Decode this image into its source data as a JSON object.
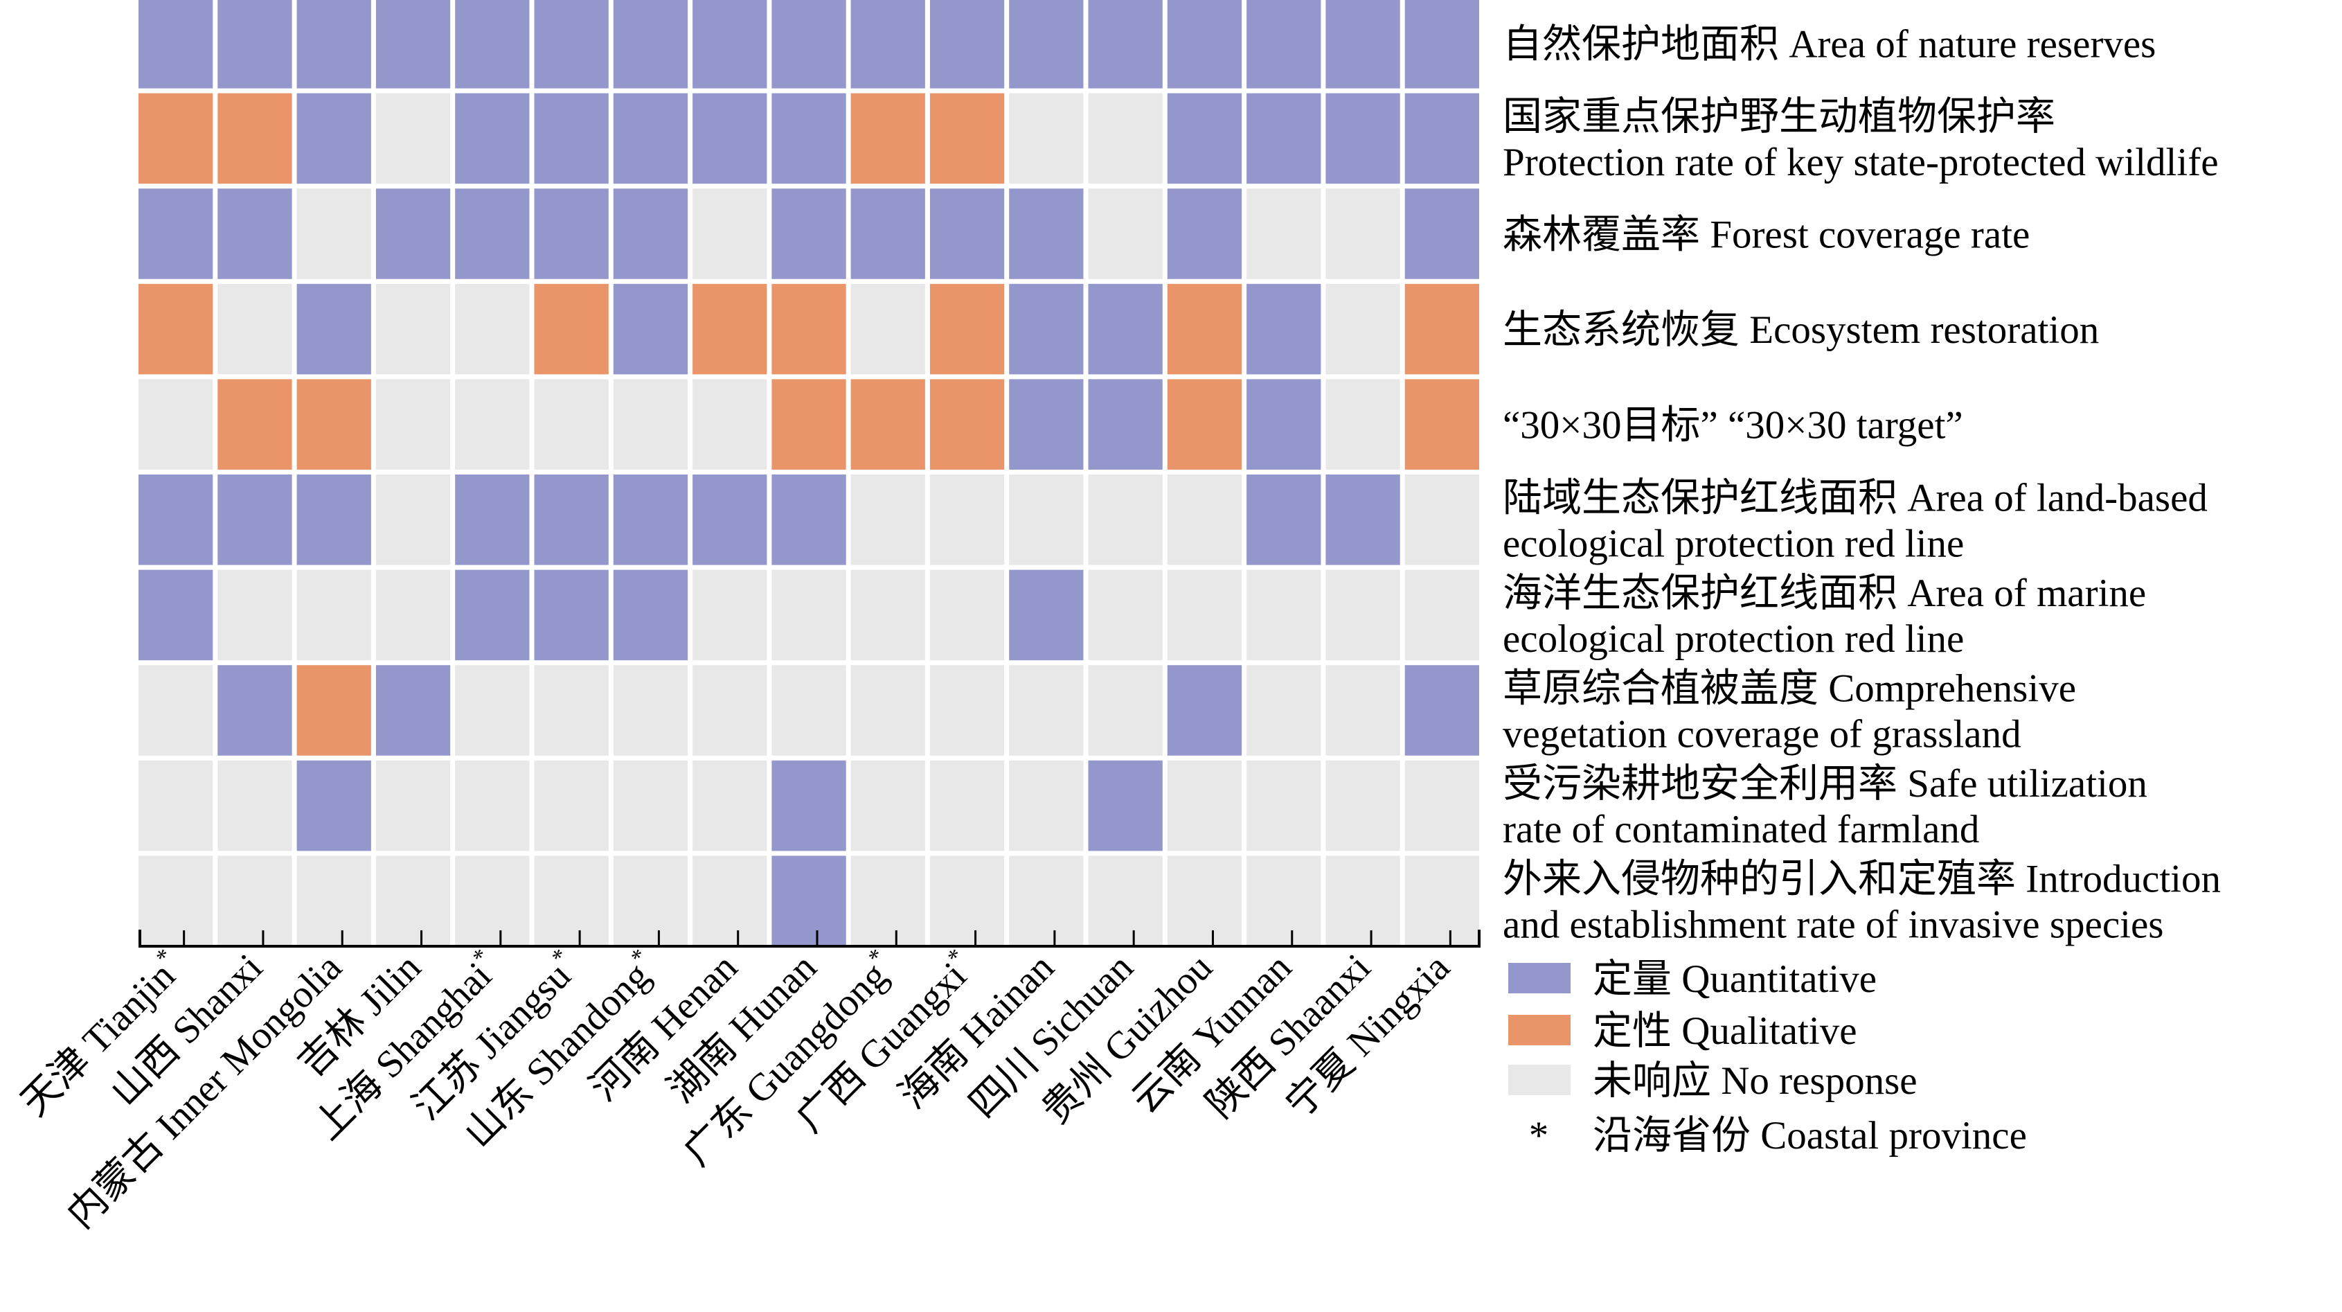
{
  "chart_data": {
    "type": "heatmap",
    "title": "",
    "xlabel": "",
    "ylabel": "",
    "grid": false,
    "legend_position": "right-bottom",
    "categories_x": [
      {
        "label": "天津 Tianjin",
        "coastal": true
      },
      {
        "label": "山西 Shanxi",
        "coastal": false
      },
      {
        "label": "内蒙古 Inner Mongolia",
        "coastal": false
      },
      {
        "label": "吉林 Jilin",
        "coastal": false
      },
      {
        "label": "上海 Shanghai",
        "coastal": true
      },
      {
        "label": "江苏 Jiangsu",
        "coastal": true
      },
      {
        "label": "山东 Shandong",
        "coastal": true
      },
      {
        "label": "河南 Henan",
        "coastal": false
      },
      {
        "label": "湖南 Hunan",
        "coastal": false
      },
      {
        "label": "广东 Guangdong",
        "coastal": true
      },
      {
        "label": "广西 Guangxi",
        "coastal": true
      },
      {
        "label": "海南 Hainan",
        "coastal": false
      },
      {
        "label": "四川 Sichuan",
        "coastal": false
      },
      {
        "label": "贵州 Guizhou",
        "coastal": false
      },
      {
        "label": "云南 Yunnan",
        "coastal": false
      },
      {
        "label": "陕西 Shaanxi",
        "coastal": false
      },
      {
        "label": "宁夏 Ningxia",
        "coastal": false
      }
    ],
    "categories_y": [
      {
        "lines": [
          "自然保护地面积 Area of nature reserves"
        ]
      },
      {
        "lines": [
          "国家重点保护野生动植物保护率",
          "Protection rate of key state-protected wildlife"
        ]
      },
      {
        "lines": [
          "森林覆盖率 Forest coverage rate"
        ]
      },
      {
        "lines": [
          "生态系统恢复 Ecosystem restoration"
        ]
      },
      {
        "lines": [
          "“30×30目标” “30×30 target”"
        ]
      },
      {
        "lines": [
          "陆域生态保护红线面积 Area of  land-based",
          "ecological protection red line"
        ]
      },
      {
        "lines": [
          "海洋生态保护红线面积 Area of marine",
          "ecological protection red line"
        ]
      },
      {
        "lines": [
          "草原综合植被盖度 Comprehensive",
          "vegetation coverage of grassland"
        ]
      },
      {
        "lines": [
          "受污染耕地安全利用率 Safe utilization",
          "rate of contaminated farmland"
        ]
      },
      {
        "lines": [
          "外来入侵物种的引入和定殖率 Introduction",
          "and establishment rate of invasive species"
        ]
      }
    ],
    "value_codes": {
      "Q": "定量 Quantitative",
      "L": "定性 Qualitative",
      "N": "未响应 No response"
    },
    "matrix": [
      [
        "Q",
        "Q",
        "Q",
        "Q",
        "Q",
        "Q",
        "Q",
        "Q",
        "Q",
        "Q",
        "Q",
        "Q",
        "Q",
        "Q",
        "Q",
        "Q",
        "Q"
      ],
      [
        "L",
        "L",
        "Q",
        "N",
        "Q",
        "Q",
        "Q",
        "Q",
        "Q",
        "L",
        "L",
        "N",
        "N",
        "Q",
        "Q",
        "Q",
        "Q"
      ],
      [
        "Q",
        "Q",
        "N",
        "Q",
        "Q",
        "Q",
        "Q",
        "N",
        "Q",
        "Q",
        "Q",
        "Q",
        "N",
        "Q",
        "N",
        "N",
        "Q"
      ],
      [
        "L",
        "N",
        "Q",
        "N",
        "N",
        "L",
        "Q",
        "L",
        "L",
        "N",
        "L",
        "Q",
        "Q",
        "L",
        "Q",
        "N",
        "L"
      ],
      [
        "N",
        "L",
        "L",
        "N",
        "N",
        "N",
        "N",
        "N",
        "L",
        "L",
        "L",
        "Q",
        "Q",
        "L",
        "Q",
        "N",
        "L"
      ],
      [
        "Q",
        "Q",
        "Q",
        "N",
        "Q",
        "Q",
        "Q",
        "Q",
        "Q",
        "N",
        "N",
        "N",
        "N",
        "N",
        "Q",
        "Q",
        "N"
      ],
      [
        "Q",
        "N",
        "N",
        "N",
        "Q",
        "Q",
        "Q",
        "N",
        "N",
        "N",
        "N",
        "Q",
        "N",
        "N",
        "N",
        "N",
        "N"
      ],
      [
        "N",
        "Q",
        "L",
        "Q",
        "N",
        "N",
        "N",
        "N",
        "N",
        "N",
        "N",
        "N",
        "N",
        "Q",
        "N",
        "N",
        "Q"
      ],
      [
        "N",
        "N",
        "Q",
        "N",
        "N",
        "N",
        "N",
        "N",
        "Q",
        "N",
        "N",
        "N",
        "Q",
        "N",
        "N",
        "N",
        "N"
      ],
      [
        "N",
        "N",
        "N",
        "N",
        "N",
        "N",
        "N",
        "N",
        "Q",
        "N",
        "N",
        "N",
        "N",
        "N",
        "N",
        "N",
        "N"
      ]
    ],
    "colors": {
      "Q": "#9497CC",
      "L": "#EA9569",
      "N": "#E8E8E8"
    },
    "legend": [
      {
        "key": "Q",
        "label": "定量 Quantitative",
        "color": "#9497CC"
      },
      {
        "key": "L",
        "label": "定性 Qualitative",
        "color": "#EA9569"
      },
      {
        "key": "N",
        "label": "未响应 No response",
        "color": "#E8E8E8"
      }
    ],
    "coastal_marker": {
      "symbol": "*",
      "label": "沿海省份 Coastal province"
    }
  }
}
